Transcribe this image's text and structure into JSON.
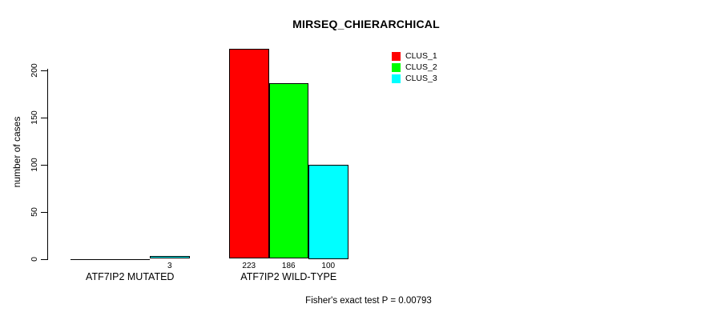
{
  "chart_data": {
    "type": "bar",
    "grouped": true,
    "title": "MIRSEQ_CHIERARCHICAL",
    "xlabel": "",
    "ylabel": "number of cases",
    "categories": [
      "ATF7IP2 MUTATED",
      "ATF7IP2 WILD-TYPE"
    ],
    "series": [
      {
        "name": "CLUS_1",
        "color": "#ff0000",
        "values": [
          0,
          223
        ]
      },
      {
        "name": "CLUS_2",
        "color": "#00ff00",
        "values": [
          0,
          186
        ]
      },
      {
        "name": "CLUS_3",
        "color": "#00ffff",
        "values": [
          3,
          100
        ]
      }
    ],
    "bar_value_labels": [
      [
        "",
        "",
        "3"
      ],
      [
        "223",
        "186",
        "100"
      ]
    ],
    "yticks": [
      0,
      50,
      100,
      150,
      200
    ],
    "ylim": [
      0,
      230
    ],
    "grid": false,
    "legend_position": "top-right-inside",
    "bar_border_color": "#000000",
    "annotation": "Fisher's exact test P = 0.00793"
  }
}
